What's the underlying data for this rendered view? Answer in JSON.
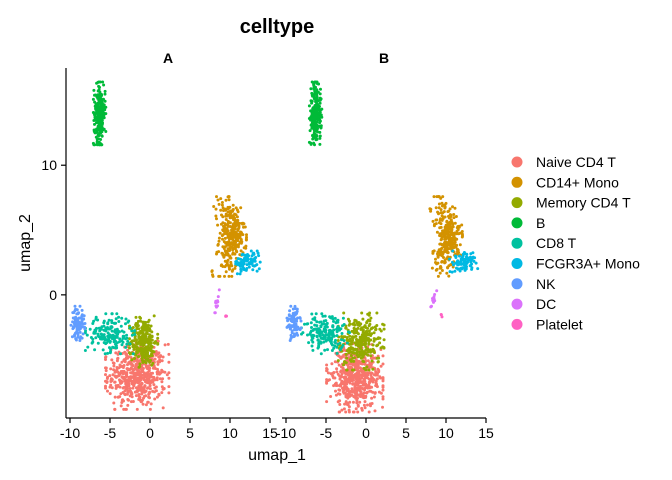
{
  "chart_data": {
    "type": "scatter",
    "title": "celltype",
    "xlabel": "umap_1",
    "ylabel": "umap_2",
    "xlim": [
      -10.5,
      15
    ],
    "ylim": [
      -9.5,
      17.5
    ],
    "x_ticks": [
      -10,
      -5,
      0,
      5,
      10,
      15
    ],
    "x_tick_labels": [
      "-10",
      "-5",
      "0",
      "5",
      "10",
      "15"
    ],
    "y_ticks": [
      0,
      10
    ],
    "y_tick_labels": [
      "0",
      "10"
    ],
    "grid": false,
    "legend_position": "right",
    "panels": [
      {
        "label": "A"
      },
      {
        "label": "B"
      }
    ],
    "categories": [
      {
        "name": "Naive CD4 T",
        "color": "#F8766D"
      },
      {
        "name": "CD14+ Mono",
        "color": "#D39200"
      },
      {
        "name": "Memory CD4 T",
        "color": "#93AA00"
      },
      {
        "name": "B",
        "color": "#00BA38"
      },
      {
        "name": "CD8 T",
        "color": "#00C19F"
      },
      {
        "name": "FCGR3A+ Mono",
        "color": "#00B9E3"
      },
      {
        "name": "NK",
        "color": "#619CFF"
      },
      {
        "name": "DC",
        "color": "#DB72FB"
      },
      {
        "name": "Platelet",
        "color": "#FF61C3"
      }
    ],
    "clusters": [
      {
        "category": "Naive CD4 T",
        "cx": -1.6,
        "cy": -6.2,
        "sx": 1.8,
        "sy": 1.2,
        "n": 550,
        "panelB": {
          "cx": -1.4,
          "cy": -6.4,
          "sx": 1.6,
          "sy": 1.2
        }
      },
      {
        "category": "CD14+ Mono",
        "cx": 10.0,
        "cy": 4.5,
        "sx": 0.8,
        "sy": 1.4,
        "n": 300
      },
      {
        "category": "Memory CD4 T",
        "cx": -0.8,
        "cy": -3.6,
        "sx": 0.8,
        "sy": 0.9,
        "n": 280,
        "panelB": {
          "cx": -0.6,
          "cy": -3.6,
          "sx": 1.3,
          "sy": 1.0
        }
      },
      {
        "category": "B",
        "cx": -6.3,
        "cy": 14.0,
        "sx": 0.35,
        "sy": 1.1,
        "n": 230
      },
      {
        "category": "CD8 T",
        "cx": -5.0,
        "cy": -3.0,
        "sx": 1.4,
        "sy": 0.7,
        "n": 180
      },
      {
        "category": "FCGR3A+ Mono",
        "cx": 12.2,
        "cy": 2.5,
        "sx": 0.8,
        "sy": 0.4,
        "n": 90
      },
      {
        "category": "NK",
        "cx": -9.0,
        "cy": -2.2,
        "sx": 0.4,
        "sy": 0.6,
        "n": 90
      },
      {
        "category": "DC",
        "cx": 8.4,
        "cy": -0.5,
        "sx": 0.25,
        "sy": 0.4,
        "n": 12
      },
      {
        "category": "Platelet",
        "cx": 9.5,
        "cy": -1.6,
        "sx": 0.08,
        "sy": 0.08,
        "n": 3
      }
    ]
  }
}
